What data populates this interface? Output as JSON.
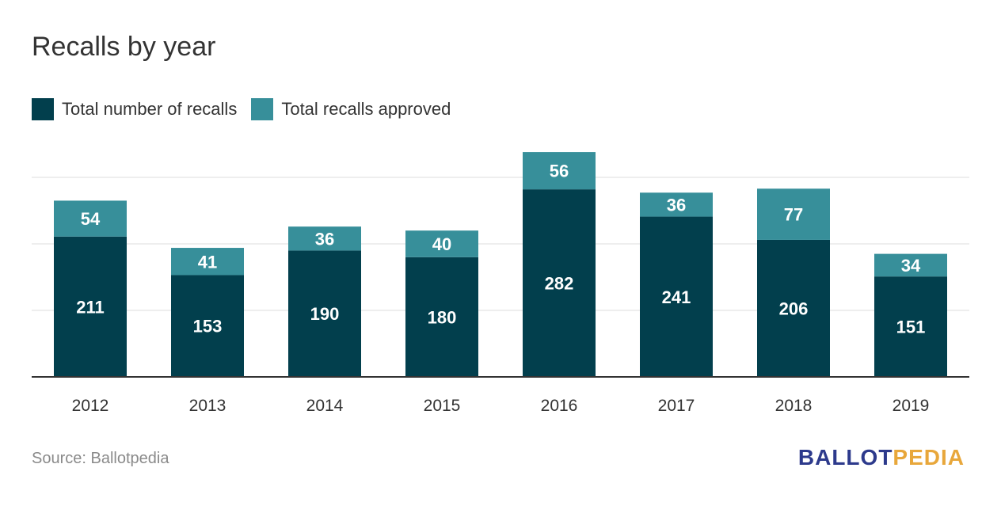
{
  "colors": {
    "total": "#023f4d",
    "approved": "#378f9a",
    "grid": "#dcdcdc",
    "axis": "#333333",
    "logo_ballot": "#2d3a8c",
    "logo_pedia": "#e8a73b"
  },
  "chart_data": {
    "type": "bar",
    "stacked": true,
    "title": "Recalls by year",
    "xlabel": "",
    "ylabel": "",
    "categories": [
      "2012",
      "2013",
      "2014",
      "2015",
      "2016",
      "2017",
      "2018",
      "2019"
    ],
    "series": [
      {
        "name": "Total number of recalls",
        "values": [
          211,
          153,
          190,
          180,
          282,
          241,
          206,
          151
        ]
      },
      {
        "name": "Total recalls approved",
        "values": [
          54,
          41,
          36,
          40,
          56,
          36,
          77,
          34
        ]
      }
    ],
    "ylim": [
      0,
      400
    ],
    "grid": true,
    "legend_position": "top-left"
  },
  "source": "Source: Ballotpedia",
  "logo": {
    "part1": "BALLOT",
    "part2": "PEDIA"
  }
}
